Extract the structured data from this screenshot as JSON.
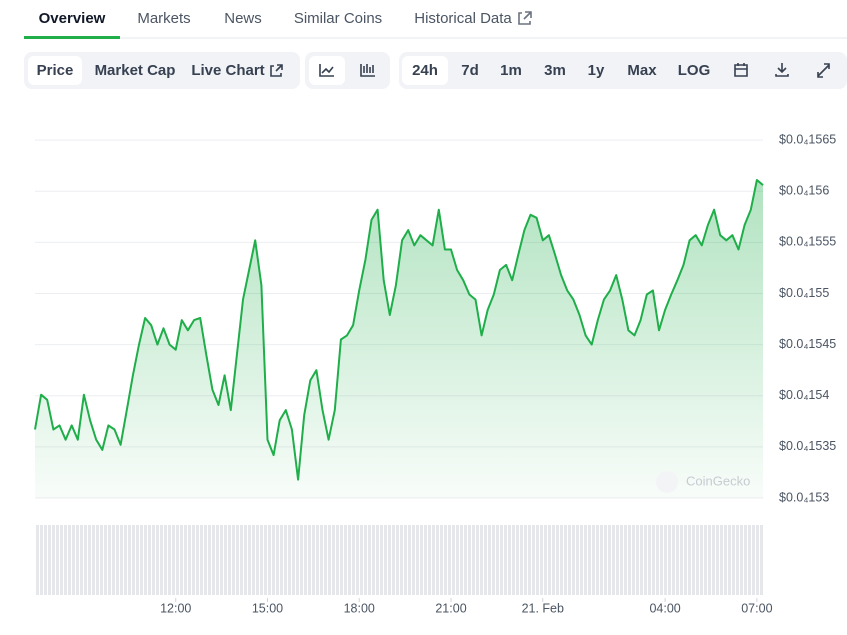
{
  "tabs": [
    "Overview",
    "Markets",
    "News",
    "Similar Coins",
    "Historical Data"
  ],
  "active_tab": 0,
  "chart_tabs": [
    "Price",
    "Market Cap",
    "Live Chart"
  ],
  "active_chart_tab": 0,
  "ranges": [
    "24h",
    "7d",
    "1m",
    "3m",
    "1y",
    "Max"
  ],
  "active_range": 0,
  "scale_button": "LOG",
  "watermark": "CoinGecko",
  "chart_data": {
    "type": "area",
    "color": "#1fae4a",
    "grid": true,
    "series": [
      {
        "values": [
          1.5367e-05,
          1.5401e-05,
          1.5396e-05,
          1.5367e-05,
          1.5371e-05,
          1.5357e-05,
          1.5371e-05,
          1.5357e-05,
          1.5401e-05,
          1.5376e-05,
          1.5357e-05,
          1.5347e-05,
          1.5371e-05,
          1.5367e-05,
          1.5352e-05,
          1.5386e-05,
          1.542e-05,
          1.545e-05,
          1.5476e-05,
          1.5469e-05,
          1.545e-05,
          1.5466e-05,
          1.545e-05,
          1.5445e-05,
          1.5474e-05,
          1.5464e-05,
          1.5474e-05,
          1.5476e-05,
          1.544e-05,
          1.5406e-05,
          1.5391e-05,
          1.542e-05,
          1.5386e-05,
          1.544e-05,
          1.5494e-05,
          1.5523e-05,
          1.5552e-05,
          1.5508e-05,
          1.5357e-05,
          1.5342e-05,
          1.5376e-05,
          1.5386e-05,
          1.5367e-05,
          1.5318e-05,
          1.5381e-05,
          1.5415e-05,
          1.5425e-05,
          1.5386e-05,
          1.5357e-05,
          1.5386e-05,
          1.5455e-05,
          1.5459e-05,
          1.5469e-05,
          1.5503e-05,
          1.5533e-05,
          1.5572e-05,
          1.5582e-05,
          1.5513e-05,
          1.5479e-05,
          1.5508e-05,
          1.5552e-05,
          1.5562e-05,
          1.5547e-05,
          1.5557e-05,
          1.5552e-05,
          1.5547e-05,
          1.5582e-05,
          1.5543e-05,
          1.5543e-05,
          1.5523e-05,
          1.5513e-05,
          1.5499e-05,
          1.5494e-05,
          1.5459e-05,
          1.5484e-05,
          1.5499e-05,
          1.5523e-05,
          1.5528e-05,
          1.5513e-05,
          1.5538e-05,
          1.5562e-05,
          1.5577e-05,
          1.5574e-05,
          1.5552e-05,
          1.5557e-05,
          1.5538e-05,
          1.5518e-05,
          1.5503e-05,
          1.5494e-05,
          1.5479e-05,
          1.5459e-05,
          1.545e-05,
          1.5474e-05,
          1.5494e-05,
          1.5503e-05,
          1.5518e-05,
          1.5494e-05,
          1.5464e-05,
          1.5459e-05,
          1.5474e-05,
          1.5499e-05,
          1.5503e-05,
          1.5464e-05,
          1.5484e-05,
          1.5499e-05,
          1.5513e-05,
          1.5528e-05,
          1.5552e-05,
          1.5557e-05,
          1.5547e-05,
          1.5567e-05,
          1.5582e-05,
          1.5557e-05,
          1.5552e-05,
          1.5557e-05,
          1.5543e-05,
          1.5567e-05,
          1.5582e-05,
          1.5611e-05,
          1.5606e-05
        ]
      }
    ],
    "xlim": [
      0,
      119
    ],
    "xticks": [
      {
        "value": 23,
        "label": "12:00"
      },
      {
        "value": 38,
        "label": "15:00"
      },
      {
        "value": 53,
        "label": "18:00"
      },
      {
        "value": 68,
        "label": "21:00"
      },
      {
        "value": 83,
        "label": "21. Feb"
      },
      {
        "value": 103,
        "label": "04:00"
      },
      {
        "value": 118,
        "label": "07:00"
      }
    ],
    "ylim": [
      1.53e-05,
      1.57e-05
    ],
    "yticks": [
      {
        "value": 1.53e-05,
        "label": "$0.0₄153"
      },
      {
        "value": 1.535e-05,
        "label": "$0.0₄1535"
      },
      {
        "value": 1.54e-05,
        "label": "$0.0₄154"
      },
      {
        "value": 1.545e-05,
        "label": "$0.0₄1545"
      },
      {
        "value": 1.55e-05,
        "label": "$0.0₄155"
      },
      {
        "value": 1.555e-05,
        "label": "$0.0₄1555"
      },
      {
        "value": 1.56e-05,
        "label": "$0.0₄156"
      },
      {
        "value": 1.565e-05,
        "label": "$0.0₄1565"
      }
    ]
  }
}
